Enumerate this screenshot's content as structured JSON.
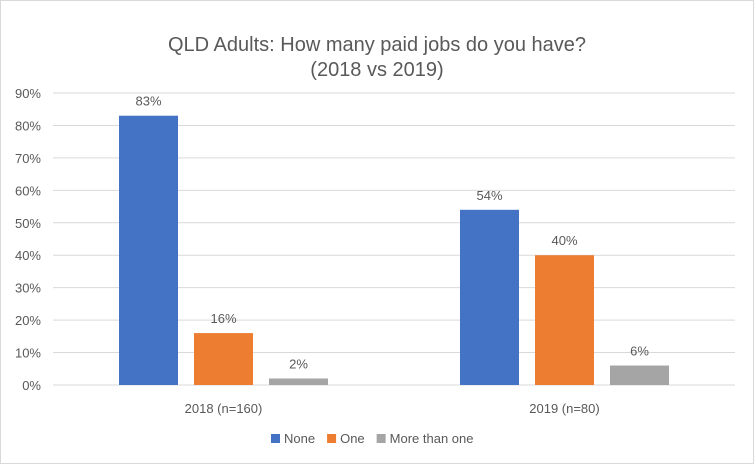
{
  "chart_data": {
    "type": "bar",
    "title": "QLD Adults: How many paid jobs do you have?",
    "subtitle": "(2018 vs 2019)",
    "categories": [
      "2018 (n=160)",
      "2019 (n=80)"
    ],
    "series": [
      {
        "name": "None",
        "values": [
          83,
          54
        ],
        "labels": [
          "83%",
          "54%"
        ],
        "color": "#4472c4"
      },
      {
        "name": "One",
        "values": [
          16,
          40
        ],
        "labels": [
          "16%",
          "40%"
        ],
        "color": "#ed7d31"
      },
      {
        "name": "More than one",
        "values": [
          2,
          6
        ],
        "labels": [
          "2%",
          "6%"
        ],
        "color": "#a5a5a5"
      }
    ],
    "ylim": [
      0,
      90
    ],
    "yticks": [
      "0%",
      "10%",
      "20%",
      "30%",
      "40%",
      "50%",
      "60%",
      "70%",
      "80%",
      "90%"
    ],
    "grid": true,
    "legend": "bottom"
  }
}
